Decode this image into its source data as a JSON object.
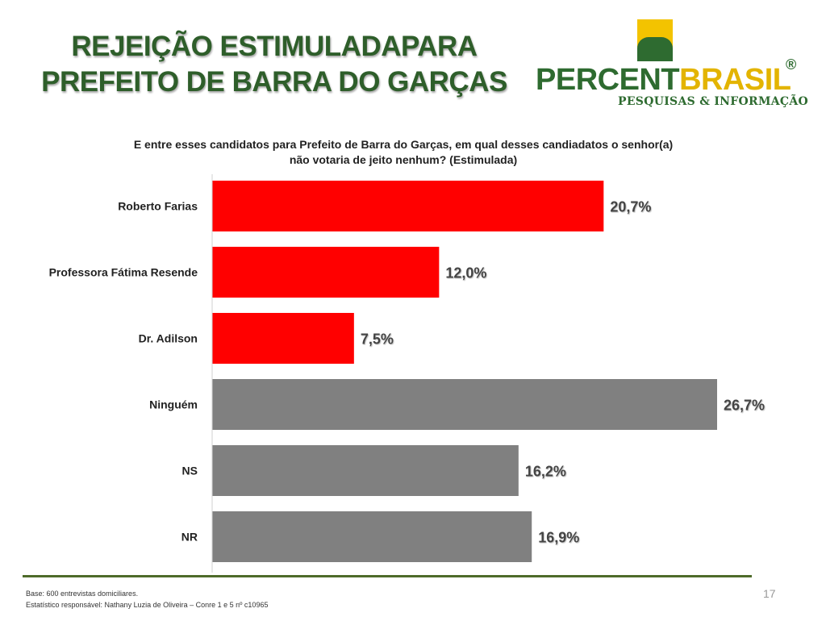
{
  "slide": {
    "title_line1": "REJEIÇÃO ESTIMULADAPARA",
    "title_line2": "PREFEITO DE BARRA DO GARÇAS",
    "page_number": "17"
  },
  "logo": {
    "word_percent": "PERCENT",
    "word_brasil": "BRASIL",
    "registered": "®",
    "tagline": "PESQUISAS & INFORMAÇÃO"
  },
  "footer": {
    "base": "Base: 600 entrevistas domiciliares.",
    "statistician": "Estatístico responsável: Nathany Luzia de Oliveira – Conre 1 e 5 nº c10965"
  },
  "colors": {
    "title_green": "#2e5e2a",
    "candidate_bar": "#ff0000",
    "other_bar": "#808080",
    "footer_rule": "#4e6b2a"
  },
  "chart_data": {
    "type": "bar",
    "orientation": "horizontal",
    "title": "E entre esses candidatos para Prefeito de Barra do Garças, em qual desses candiadatos o senhor(a) não votaria de jeito nenhum? (Estimulada)",
    "title_line1": "E entre esses candidatos para Prefeito de Barra do Garças, em qual desses candiadatos o senhor(a)",
    "title_line2": "não votaria de jeito nenhum? (Estimulada)",
    "categories": [
      "Roberto Farias",
      "Professora Fátima Resende",
      "Dr. Adilson",
      "Ninguém",
      "NS",
      "NR"
    ],
    "values": [
      20.7,
      12.0,
      7.5,
      26.7,
      16.2,
      16.9
    ],
    "value_labels": [
      "20,7%",
      "12,0%",
      "7,5%",
      "26,7%",
      "16,2%",
      "16,9%"
    ],
    "bar_colors": [
      "#ff0000",
      "#ff0000",
      "#ff0000",
      "#808080",
      "#808080",
      "#808080"
    ],
    "xlim": [
      0,
      26.7
    ],
    "grid": false,
    "legend": "none"
  }
}
